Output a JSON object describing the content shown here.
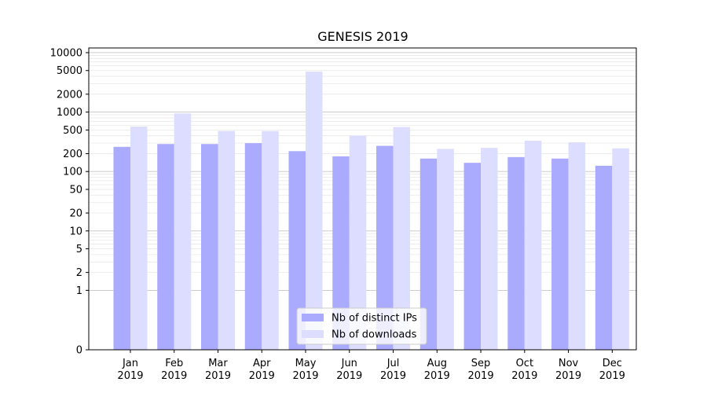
{
  "chart_data": {
    "type": "bar",
    "title": "GENESIS 2019",
    "xlabel": "",
    "ylabel": "",
    "y_scale": "symlog",
    "ylim": [
      0,
      12000
    ],
    "yticks": [
      0,
      1,
      2,
      5,
      10,
      20,
      50,
      100,
      200,
      500,
      1000,
      2000,
      5000,
      10000
    ],
    "grid": "horizontal",
    "legend_position": "bottom-center",
    "categories": [
      "Jan\n2019",
      "Feb\n2019",
      "Mar\n2019",
      "Apr\n2019",
      "May\n2019",
      "Jun\n2019",
      "Jul\n2019",
      "Aug\n2019",
      "Sep\n2019",
      "Oct\n2019",
      "Nov\n2019",
      "Dec\n2019"
    ],
    "series": [
      {
        "name": "Nb of distinct IPs",
        "color": "#aaaaff",
        "values": [
          260,
          290,
          290,
          300,
          220,
          180,
          270,
          165,
          140,
          175,
          165,
          125
        ]
      },
      {
        "name": "Nb of downloads",
        "color": "#ddddff",
        "values": [
          570,
          950,
          480,
          480,
          4800,
          400,
          560,
          240,
          250,
          330,
          310,
          245
        ]
      }
    ]
  }
}
